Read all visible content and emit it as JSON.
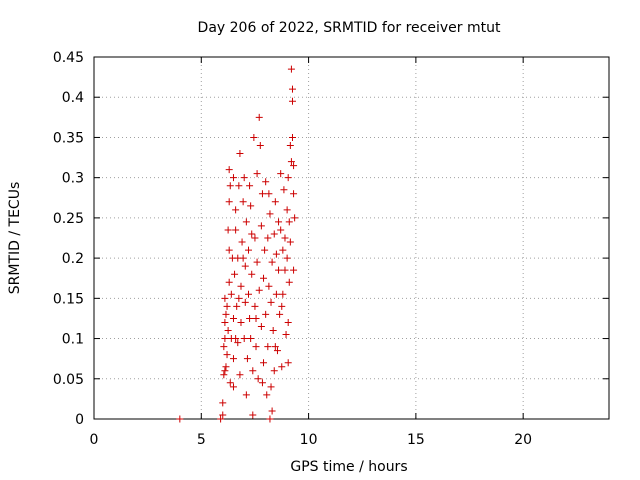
{
  "chart_data": {
    "type": "scatter",
    "title": "Day 206 of 2022, SRMTID for receiver mtut",
    "xlabel": "GPS time / hours",
    "ylabel": "SRMTID / TECUs",
    "xlim": [
      0,
      24
    ],
    "ylim": [
      0,
      0.45
    ],
    "x_ticks": [
      0,
      5,
      10,
      15,
      20
    ],
    "y_ticks": [
      0,
      0.05,
      0.1,
      0.15,
      0.2,
      0.25,
      0.3,
      0.35,
      0.4,
      0.45
    ],
    "x_tick_labels": [
      "0",
      "5",
      "10",
      "15",
      "20"
    ],
    "y_tick_labels": [
      "0",
      "0.05",
      "0.1",
      "0.15",
      "0.2",
      "0.25",
      "0.3",
      "0.35",
      "0.4",
      "0.45"
    ],
    "grid": true,
    "marker": "+",
    "color": "#cc0000",
    "points": [
      [
        4.0,
        0.0
      ],
      [
        5.9,
        0.0
      ],
      [
        6.0,
        0.005
      ],
      [
        6.0,
        0.02
      ],
      [
        6.05,
        0.055
      ],
      [
        6.1,
        0.06
      ],
      [
        6.05,
        0.09
      ],
      [
        6.1,
        0.1
      ],
      [
        6.1,
        0.12
      ],
      [
        6.1,
        0.15
      ],
      [
        6.15,
        0.13
      ],
      [
        6.2,
        0.08
      ],
      [
        6.2,
        0.14
      ],
      [
        6.25,
        0.11
      ],
      [
        6.3,
        0.17
      ],
      [
        6.3,
        0.21
      ],
      [
        6.25,
        0.235
      ],
      [
        6.3,
        0.27
      ],
      [
        6.3,
        0.31
      ],
      [
        6.35,
        0.29
      ],
      [
        6.4,
        0.1
      ],
      [
        6.4,
        0.155
      ],
      [
        6.45,
        0.2
      ],
      [
        6.5,
        0.04
      ],
      [
        6.5,
        0.075
      ],
      [
        6.5,
        0.125
      ],
      [
        6.55,
        0.18
      ],
      [
        6.6,
        0.235
      ],
      [
        6.6,
        0.26
      ],
      [
        6.65,
        0.14
      ],
      [
        6.7,
        0.095
      ],
      [
        6.7,
        0.2
      ],
      [
        6.75,
        0.29
      ],
      [
        6.8,
        0.33
      ],
      [
        6.8,
        0.055
      ],
      [
        6.85,
        0.12
      ],
      [
        6.85,
        0.165
      ],
      [
        6.9,
        0.22
      ],
      [
        6.95,
        0.27
      ],
      [
        7.0,
        0.3
      ],
      [
        7.0,
        0.1
      ],
      [
        7.05,
        0.145
      ],
      [
        7.05,
        0.19
      ],
      [
        7.1,
        0.245
      ],
      [
        7.1,
        0.03
      ],
      [
        7.15,
        0.075
      ],
      [
        7.2,
        0.155
      ],
      [
        7.2,
        0.21
      ],
      [
        7.25,
        0.125
      ],
      [
        7.3,
        0.1
      ],
      [
        7.3,
        0.265
      ],
      [
        7.35,
        0.18
      ],
      [
        7.4,
        0.005
      ],
      [
        7.4,
        0.06
      ],
      [
        7.45,
        0.35
      ],
      [
        7.5,
        0.14
      ],
      [
        7.5,
        0.225
      ],
      [
        7.55,
        0.09
      ],
      [
        7.6,
        0.195
      ],
      [
        7.6,
        0.305
      ],
      [
        7.65,
        0.05
      ],
      [
        7.7,
        0.375
      ],
      [
        7.7,
        0.16
      ],
      [
        7.75,
        0.34
      ],
      [
        7.8,
        0.115
      ],
      [
        7.8,
        0.24
      ],
      [
        7.85,
        0.28
      ],
      [
        7.9,
        0.07
      ],
      [
        7.9,
        0.175
      ],
      [
        7.95,
        0.21
      ],
      [
        8.0,
        0.13
      ],
      [
        8.0,
        0.295
      ],
      [
        8.05,
        0.03
      ],
      [
        8.1,
        0.225
      ],
      [
        8.1,
        0.09
      ],
      [
        8.15,
        0.165
      ],
      [
        8.2,
        0.0
      ],
      [
        8.2,
        0.255
      ],
      [
        8.25,
        0.145
      ],
      [
        8.3,
        0.01
      ],
      [
        8.3,
        0.195
      ],
      [
        8.35,
        0.11
      ],
      [
        8.4,
        0.23
      ],
      [
        8.4,
        0.06
      ],
      [
        8.45,
        0.27
      ],
      [
        8.5,
        0.155
      ],
      [
        8.5,
        0.205
      ],
      [
        8.55,
        0.085
      ],
      [
        8.6,
        0.185
      ],
      [
        8.6,
        0.245
      ],
      [
        8.65,
        0.13
      ],
      [
        8.7,
        0.235
      ],
      [
        8.7,
        0.305
      ],
      [
        8.75,
        0.065
      ],
      [
        8.8,
        0.21
      ],
      [
        8.8,
        0.155
      ],
      [
        8.85,
        0.285
      ],
      [
        8.9,
        0.185
      ],
      [
        8.9,
        0.225
      ],
      [
        8.95,
        0.105
      ],
      [
        9.0,
        0.26
      ],
      [
        9.0,
        0.2
      ],
      [
        9.05,
        0.3
      ],
      [
        9.05,
        0.07
      ],
      [
        9.1,
        0.245
      ],
      [
        9.1,
        0.17
      ],
      [
        9.15,
        0.34
      ],
      [
        9.15,
        0.22
      ],
      [
        9.2,
        0.435
      ],
      [
        9.2,
        0.32
      ],
      [
        9.25,
        0.395
      ],
      [
        9.25,
        0.41
      ],
      [
        9.25,
        0.35
      ],
      [
        9.3,
        0.315
      ],
      [
        9.3,
        0.28
      ],
      [
        9.3,
        0.185
      ],
      [
        9.35,
        0.25
      ],
      [
        6.15,
        0.065
      ],
      [
        6.35,
        0.045
      ],
      [
        6.6,
        0.1
      ],
      [
        6.95,
        0.2
      ],
      [
        7.25,
        0.29
      ],
      [
        7.55,
        0.125
      ],
      [
        7.85,
        0.045
      ],
      [
        8.15,
        0.28
      ],
      [
        8.45,
        0.09
      ],
      [
        8.75,
        0.14
      ],
      [
        9.05,
        0.12
      ],
      [
        8.25,
        0.04
      ],
      [
        6.75,
        0.15
      ],
      [
        7.35,
        0.23
      ],
      [
        6.5,
        0.3
      ]
    ]
  }
}
